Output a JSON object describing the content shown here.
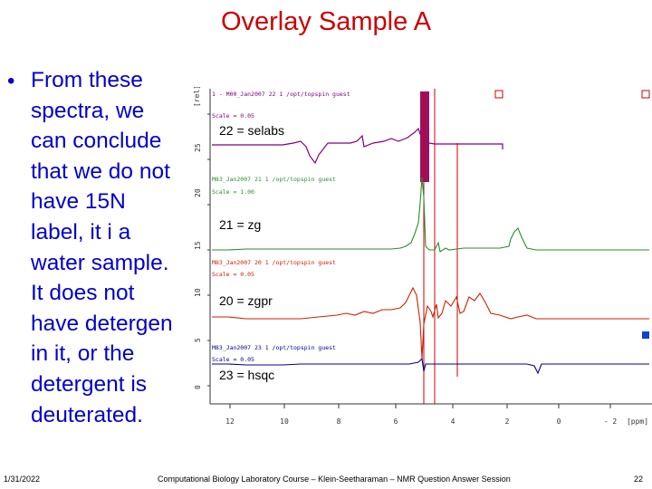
{
  "slide": {
    "title": "Overlay Sample A",
    "bullet_lines": [
      "From these",
      "spectra, we",
      "can conclude",
      "that we do not",
      "have 15N",
      "label, it i a",
      "water sample.",
      "It does not",
      "have detergen",
      "in it, or the",
      "detergent is",
      "deuterated."
    ]
  },
  "spectrum": {
    "y_axis_unit": "[rel]",
    "y_ticks": [
      "25",
      "20",
      "15",
      "10",
      "5",
      "0"
    ],
    "x_ticks": [
      "12",
      "10",
      "8",
      "6",
      "4",
      "2",
      "0",
      "- 2"
    ],
    "x_axis_unit": "[ppm]",
    "traces": [
      {
        "label": "22 = selabs",
        "color": "#800080",
        "header": "1 - M00_Jan2007 22 1 /opt/topspin guest",
        "scale": "Scale = 0.05"
      },
      {
        "label": "21 = zg",
        "color": "#2e8b2e",
        "header": "M83_Jan2007 21 1 /opt/topspin guest",
        "scale": "Scale = 1.00"
      },
      {
        "label": "20 = zgpr",
        "color": "#cc2200",
        "header": "M83_Jan2007 20 1 /opt/topspin guest",
        "scale": "Scale = 0.05"
      },
      {
        "label": "23 = hsqc",
        "color": "#000099",
        "header": "M83_Jan2007 23 1 /opt/topspin guest",
        "scale": "Scale = 0.05"
      }
    ]
  },
  "footer": {
    "date": "1/31/2022",
    "course": "Computational Biology Laboratory Course – Klein-Seetharaman – NMR Question Answer Session",
    "page": "22"
  }
}
